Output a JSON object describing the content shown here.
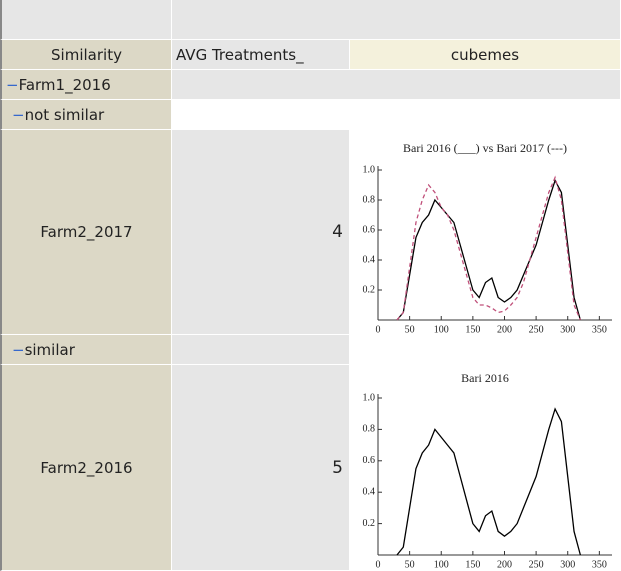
{
  "table": {
    "headers": [
      "Similarity",
      "AVG Treatments_",
      "cubemes"
    ],
    "groups": [
      {
        "label": "Farm1_2016",
        "subgroups": [
          {
            "label": "not similar",
            "row": {
              "name": "Farm2_2017",
              "value": "4"
            }
          },
          {
            "label": "similar",
            "row": {
              "name": "Farm2_2016",
              "value": "5"
            }
          }
        ]
      }
    ]
  },
  "chart_data": [
    {
      "type": "line",
      "title": "Bari 2016 (___) vs Bari 2017 (---)",
      "x": [
        30,
        40,
        50,
        60,
        70,
        80,
        90,
        100,
        110,
        120,
        130,
        140,
        150,
        160,
        170,
        180,
        190,
        200,
        210,
        220,
        230,
        240,
        250,
        260,
        270,
        280,
        290,
        300,
        310,
        320
      ],
      "series": [
        {
          "color": "#000000",
          "dash": false,
          "values": [
            0,
            0.05,
            0.3,
            0.55,
            0.65,
            0.7,
            0.8,
            0.75,
            0.7,
            0.65,
            0.5,
            0.35,
            0.2,
            0.15,
            0.25,
            0.28,
            0.15,
            0.12,
            0.15,
            0.2,
            0.3,
            0.4,
            0.5,
            0.65,
            0.8,
            0.93,
            0.85,
            0.5,
            0.15,
            0
          ]
        },
        {
          "color": "#c0507a",
          "dash": true,
          "values": [
            0,
            0.05,
            0.35,
            0.65,
            0.8,
            0.9,
            0.85,
            0.75,
            0.7,
            0.6,
            0.45,
            0.3,
            0.15,
            0.1,
            0.1,
            0.08,
            0.05,
            0.06,
            0.1,
            0.15,
            0.25,
            0.4,
            0.55,
            0.7,
            0.85,
            0.95,
            0.8,
            0.45,
            0.1,
            0
          ]
        }
      ],
      "xlim": [
        0,
        370
      ],
      "xticks": [
        0,
        50,
        100,
        150,
        200,
        250,
        300,
        350
      ],
      "ylim": [
        0,
        1
      ],
      "yticks": [
        0.2,
        0.4,
        0.6,
        0.8,
        {
          "value": 1,
          "label": "1.0"
        }
      ]
    },
    {
      "type": "line",
      "title": "Bari 2016",
      "x": [
        30,
        40,
        50,
        60,
        70,
        80,
        90,
        100,
        110,
        120,
        130,
        140,
        150,
        160,
        170,
        180,
        190,
        200,
        210,
        220,
        230,
        240,
        250,
        260,
        270,
        280,
        290,
        300,
        310,
        320
      ],
      "series": [
        {
          "color": "#000000",
          "dash": false,
          "values": [
            0,
            0.05,
            0.3,
            0.55,
            0.65,
            0.7,
            0.8,
            0.75,
            0.7,
            0.65,
            0.5,
            0.35,
            0.2,
            0.15,
            0.25,
            0.28,
            0.15,
            0.12,
            0.15,
            0.2,
            0.3,
            0.4,
            0.5,
            0.65,
            0.8,
            0.93,
            0.85,
            0.5,
            0.15,
            0
          ]
        }
      ],
      "xlim": [
        0,
        370
      ],
      "xticks": [
        0,
        50,
        100,
        150,
        200,
        250,
        300,
        350
      ],
      "ylim": [
        0,
        1
      ],
      "yticks": [
        0.2,
        0.4,
        0.6,
        0.8,
        {
          "value": 1,
          "label": "1.0"
        }
      ]
    }
  ]
}
